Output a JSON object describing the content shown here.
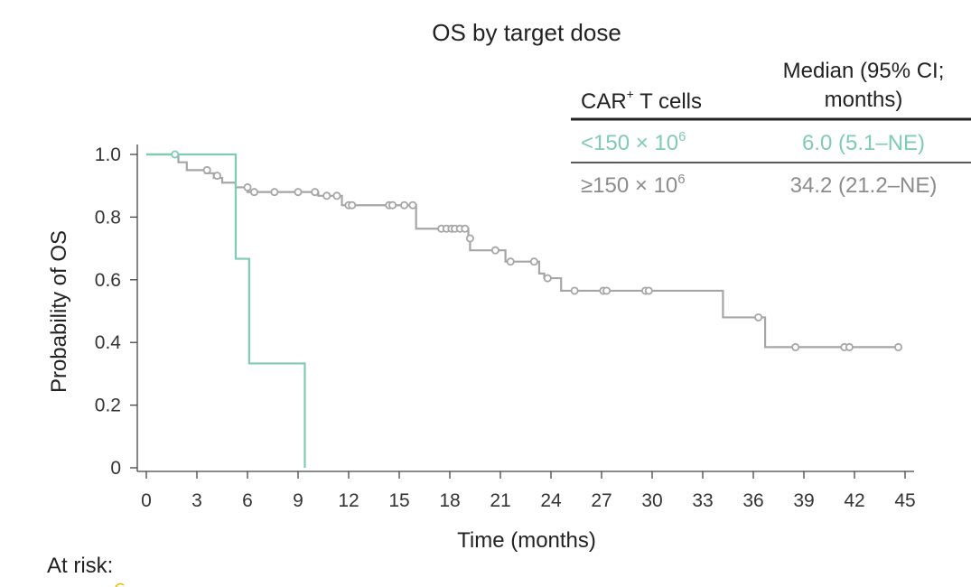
{
  "chart_data": {
    "type": "line",
    "title": "OS by target dose",
    "xlabel": "Time (months)",
    "ylabel": "Probability of OS",
    "xlim": [
      0,
      45
    ],
    "ylim": [
      0,
      1
    ],
    "x_ticks": [
      0,
      3,
      6,
      9,
      12,
      15,
      18,
      21,
      24,
      27,
      30,
      33,
      36,
      39,
      42,
      45
    ],
    "x_tick_labels": [
      "0",
      "3",
      "6",
      "9",
      "12",
      "15",
      "18",
      "21",
      "24",
      "27",
      "30",
      "33",
      "36",
      "39",
      "42",
      "45"
    ],
    "y_ticks": [
      0,
      0.2,
      0.4,
      0.6,
      0.8,
      1.0
    ],
    "y_tick_labels": [
      "0",
      "0.2",
      "0.4",
      "0.6",
      "0.8",
      "1.0"
    ],
    "legend": {
      "header_group": "CAR",
      "header_group_sup": "+",
      "header_group_rest": " T cells",
      "header_median_line1": "Median (95% CI;",
      "header_median_line2": "months)",
      "placement": "top-right"
    },
    "series": [
      {
        "name": "<150 × 10⁶",
        "label_base": "<150 × 10",
        "label_exp": "6",
        "median": "6.0 (5.1–NE)",
        "color": "#7fcbb5",
        "steps": [
          [
            0,
            1.0
          ],
          [
            5.3,
            0.667
          ],
          [
            6.1,
            0.333
          ],
          [
            9.4,
            0.0
          ]
        ],
        "end_x": 9.4,
        "censored": [
          [
            1.7,
            1.0
          ]
        ]
      },
      {
        "name": "≥150 × 10⁶",
        "label_base": "≥150 × 10",
        "label_exp": "6",
        "median": "34.2 (21.2–NE)",
        "color": "#a6a6a6",
        "steps": [
          [
            0,
            1.0
          ],
          [
            1.9,
            0.975
          ],
          [
            2.4,
            0.95
          ],
          [
            3.5,
            0.94
          ],
          [
            4.0,
            0.925
          ],
          [
            4.5,
            0.91
          ],
          [
            5.3,
            0.895
          ],
          [
            6.0,
            0.88
          ],
          [
            10.2,
            0.868
          ],
          [
            11.6,
            0.838
          ],
          [
            16.0,
            0.763
          ],
          [
            19.1,
            0.732
          ],
          [
            19.2,
            0.694
          ],
          [
            21.3,
            0.658
          ],
          [
            23.3,
            0.62
          ],
          [
            23.6,
            0.605
          ],
          [
            24.6,
            0.565
          ],
          [
            34.2,
            0.48
          ],
          [
            36.7,
            0.385
          ]
        ],
        "end_x": 44.6,
        "censored": [
          [
            3.6,
            0.95
          ],
          [
            4.2,
            0.932
          ],
          [
            6.0,
            0.895
          ],
          [
            6.4,
            0.88
          ],
          [
            7.6,
            0.88
          ],
          [
            9.0,
            0.88
          ],
          [
            10.0,
            0.88
          ],
          [
            10.7,
            0.868
          ],
          [
            11.3,
            0.868
          ],
          [
            12.0,
            0.838
          ],
          [
            12.2,
            0.838
          ],
          [
            14.4,
            0.838
          ],
          [
            14.6,
            0.838
          ],
          [
            15.3,
            0.838
          ],
          [
            15.8,
            0.838
          ],
          [
            17.5,
            0.763
          ],
          [
            17.8,
            0.763
          ],
          [
            18.1,
            0.763
          ],
          [
            18.3,
            0.763
          ],
          [
            18.6,
            0.763
          ],
          [
            18.9,
            0.763
          ],
          [
            19.2,
            0.732
          ],
          [
            20.7,
            0.694
          ],
          [
            21.6,
            0.658
          ],
          [
            23.0,
            0.658
          ],
          [
            23.8,
            0.605
          ],
          [
            25.4,
            0.565
          ],
          [
            27.1,
            0.565
          ],
          [
            27.3,
            0.565
          ],
          [
            29.6,
            0.565
          ],
          [
            29.8,
            0.565
          ],
          [
            36.3,
            0.48
          ],
          [
            38.5,
            0.385
          ],
          [
            41.4,
            0.385
          ],
          [
            41.7,
            0.385
          ],
          [
            44.6,
            0.385
          ]
        ]
      }
    ]
  },
  "footer": {
    "at_risk_label": "At risk:"
  }
}
